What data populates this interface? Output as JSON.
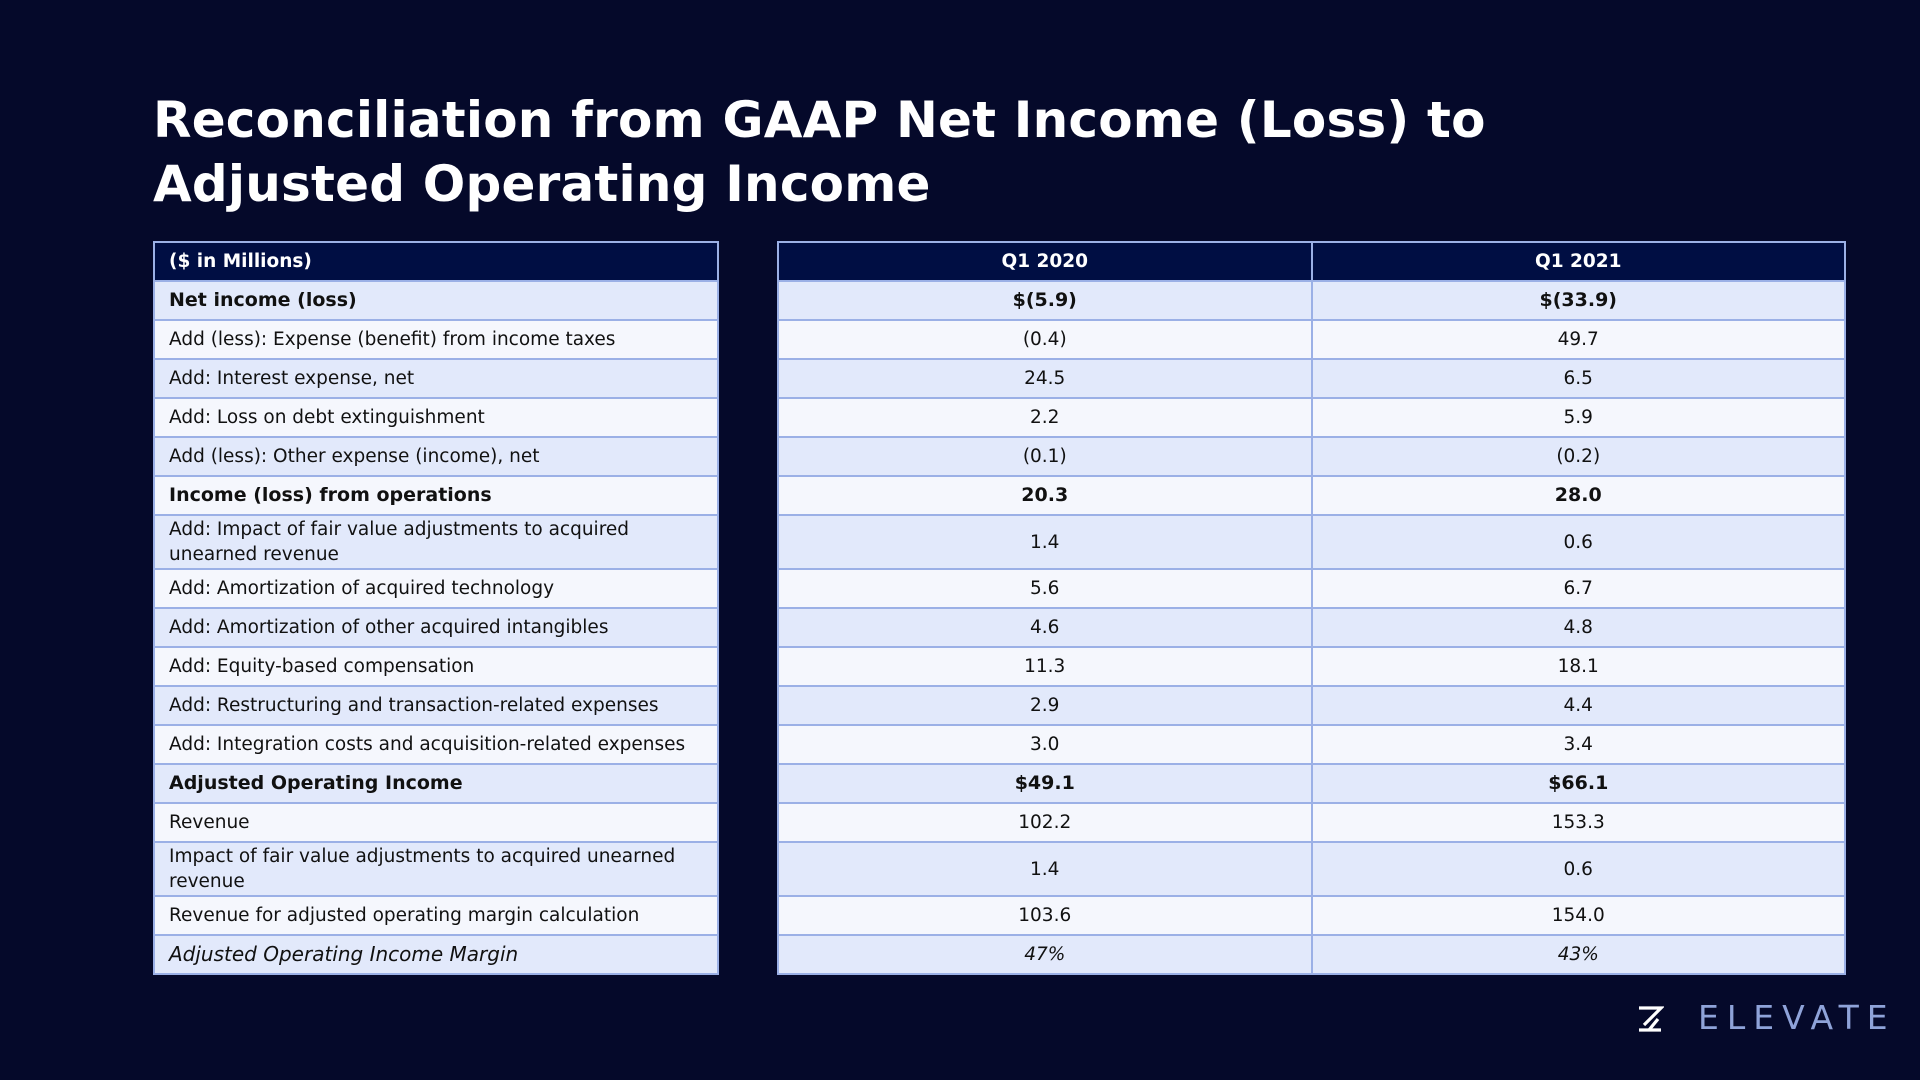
{
  "title": "Reconciliation from GAAP Net Income (Loss) to Adjusted Operating Income",
  "table": {
    "label_header": "($ in Millions)",
    "columns": [
      "Q1 2020",
      "Q1 2021"
    ],
    "rows": [
      {
        "label": "Net income (loss)",
        "values": [
          "$(5.9)",
          "$(33.9)"
        ],
        "style": "bold"
      },
      {
        "label": "Add (less): Expense (benefit) from income taxes",
        "values": [
          "(0.4)",
          "49.7"
        ],
        "style": "normal"
      },
      {
        "label": "Add: Interest expense, net",
        "values": [
          "24.5",
          "6.5"
        ],
        "style": "normal"
      },
      {
        "label": "Add: Loss on debt extinguishment",
        "values": [
          "2.2",
          "5.9"
        ],
        "style": "normal"
      },
      {
        "label": "Add (less): Other expense (income), net",
        "values": [
          "(0.1)",
          "(0.2)"
        ],
        "style": "normal"
      },
      {
        "label": "Income (loss) from operations",
        "values": [
          "20.3",
          "28.0"
        ],
        "style": "bold"
      },
      {
        "label": "Add: Impact of fair value adjustments to acquired unearned revenue",
        "values": [
          "1.4",
          "0.6"
        ],
        "style": "normal"
      },
      {
        "label": "Add: Amortization of acquired technology",
        "values": [
          "5.6",
          "6.7"
        ],
        "style": "normal"
      },
      {
        "label": "Add: Amortization of other acquired intangibles",
        "values": [
          "4.6",
          "4.8"
        ],
        "style": "normal"
      },
      {
        "label": "Add: Equity-based compensation",
        "values": [
          "11.3",
          "18.1"
        ],
        "style": "normal"
      },
      {
        "label": "Add: Restructuring and transaction-related expenses",
        "values": [
          "2.9",
          "4.4"
        ],
        "style": "normal"
      },
      {
        "label": "Add: Integration costs and acquisition-related expenses",
        "values": [
          "3.0",
          "3.4"
        ],
        "style": "normal"
      },
      {
        "label": "Adjusted Operating Income",
        "values": [
          "$49.1",
          "$66.1"
        ],
        "style": "bold"
      },
      {
        "label": "Revenue",
        "values": [
          "102.2",
          "153.3"
        ],
        "style": "normal"
      },
      {
        "label": "Impact of fair value adjustments to acquired unearned revenue",
        "values": [
          "1.4",
          "0.6"
        ],
        "style": "normal"
      },
      {
        "label": "Revenue for adjusted operating margin calculation",
        "values": [
          "103.6",
          "154.0"
        ],
        "style": "normal"
      },
      {
        "label": "Adjusted Operating Income Margin",
        "values": [
          "47%",
          "43%"
        ],
        "style": "italic"
      }
    ]
  },
  "brand": {
    "name": "ELEVATE",
    "logo_icon": "z-logo-icon",
    "color": "#8fa3d9"
  },
  "colors": {
    "background": "#05092a",
    "header_fill": "#000e43",
    "row_odd": "#e2e9fb",
    "row_even": "#f5f7fd",
    "border": "#9bb0e6"
  }
}
